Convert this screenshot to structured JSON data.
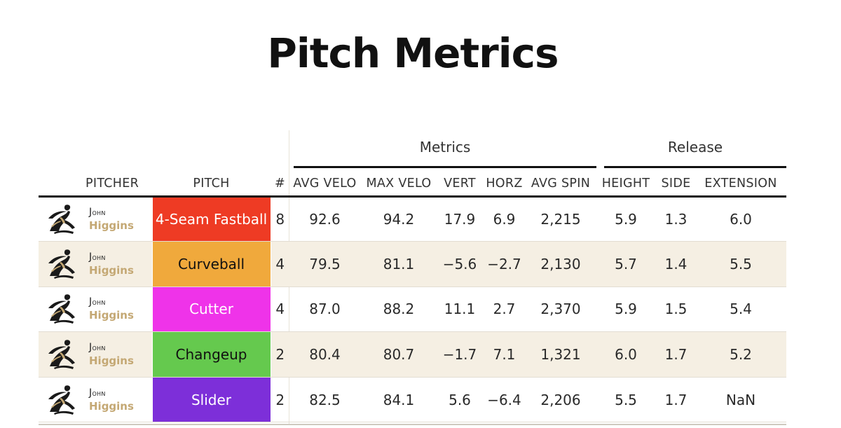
{
  "title": "Pitch Metrics",
  "groups": {
    "metrics": "Metrics",
    "release": "Release"
  },
  "headers": {
    "pitcher": "PITCHER",
    "pitch": "PITCH",
    "count": "#",
    "avg_velo": "AVG VELO",
    "max_velo": "MAX VELO",
    "vert": "VERT",
    "horz": "HORZ",
    "avg_spin": "AVG SPIN",
    "height": "HEIGHT",
    "side": "SIDE",
    "extension": "EXTENSION"
  },
  "rows": [
    {
      "first_name": "John",
      "last_name": "Higgins",
      "pitch": "4-Seam Fastball",
      "pitch_color": "#ee3b24",
      "pitch_text_color": "#ffffff",
      "count": "8",
      "avg_velo": "92.6",
      "max_velo": "94.2",
      "vert": "17.9",
      "horz": "6.9",
      "avg_spin": "2,215",
      "height": "5.9",
      "side": "1.3",
      "extension": "6.0"
    },
    {
      "first_name": "John",
      "last_name": "Higgins",
      "pitch": "Curveball",
      "pitch_color": "#f0a93c",
      "pitch_text_color": "#111111",
      "count": "4",
      "avg_velo": "79.5",
      "max_velo": "81.1",
      "vert": "−5.6",
      "horz": "−2.7",
      "avg_spin": "2,130",
      "height": "5.7",
      "side": "1.4",
      "extension": "5.5"
    },
    {
      "first_name": "John",
      "last_name": "Higgins",
      "pitch": "Cutter",
      "pitch_color": "#ef33e9",
      "pitch_text_color": "#ffffff",
      "count": "4",
      "avg_velo": "87.0",
      "max_velo": "88.2",
      "vert": "11.1",
      "horz": "2.7",
      "avg_spin": "2,370",
      "height": "5.9",
      "side": "1.5",
      "extension": "5.4"
    },
    {
      "first_name": "John",
      "last_name": "Higgins",
      "pitch": "Changeup",
      "pitch_color": "#65c94e",
      "pitch_text_color": "#111111",
      "count": "2",
      "avg_velo": "80.4",
      "max_velo": "80.7",
      "vert": "−1.7",
      "horz": "7.1",
      "avg_spin": "1,321",
      "height": "6.0",
      "side": "1.7",
      "extension": "5.2"
    },
    {
      "first_name": "John",
      "last_name": "Higgins",
      "pitch": "Slider",
      "pitch_color": "#7d2fd9",
      "pitch_text_color": "#ffffff",
      "count": "2",
      "avg_velo": "82.5",
      "max_velo": "84.1",
      "vert": "5.6",
      "horz": "−6.4",
      "avg_spin": "2,206",
      "height": "5.5",
      "side": "1.7",
      "extension": "NaN"
    }
  ]
}
